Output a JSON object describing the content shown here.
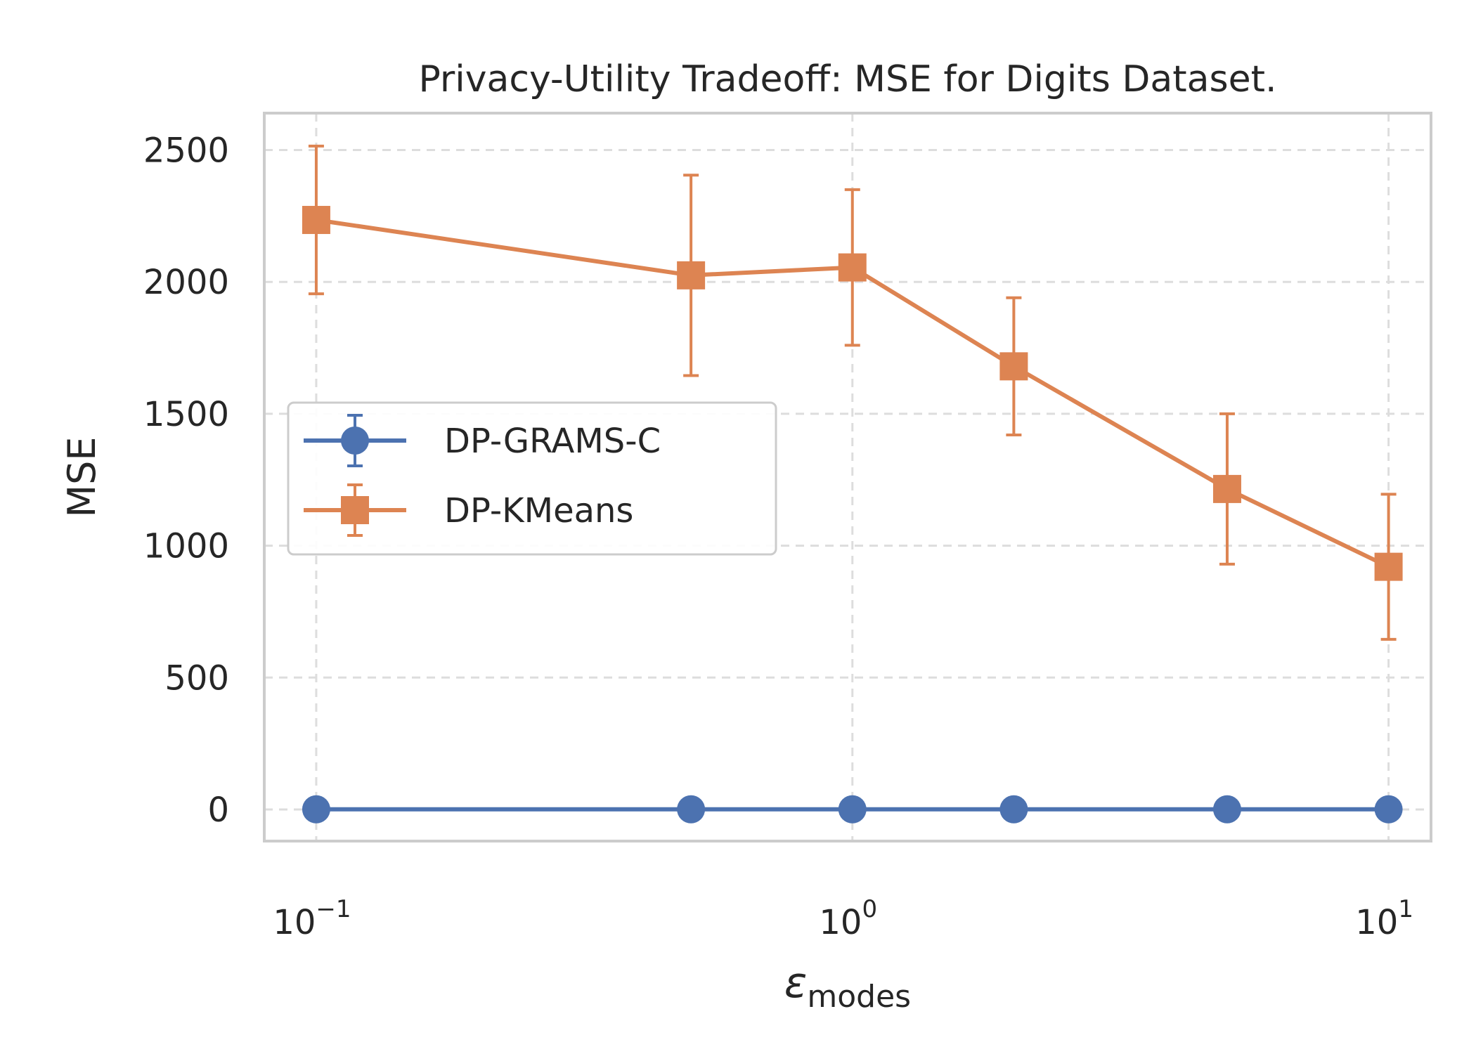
{
  "chart_data": {
    "type": "line",
    "title": "Privacy-Utility Tradeoff: MSE for Digits Dataset.",
    "xlabel": "ε_modes",
    "xlabel_symbol": "ε",
    "xlabel_subscript": "modes",
    "ylabel": "MSE",
    "x_scale": "log",
    "xlim": [
      0.08,
      12
    ],
    "ylim": [
      -120,
      2640
    ],
    "x_ticks": [
      {
        "value": 0.1,
        "base": "10",
        "exp": "−1"
      },
      {
        "value": 1,
        "base": "10",
        "exp": "0"
      },
      {
        "value": 10,
        "base": "10",
        "exp": "1"
      }
    ],
    "y_ticks": [
      0,
      500,
      1000,
      1500,
      2000,
      2500
    ],
    "y_tick_labels": [
      "0",
      "500",
      "1000",
      "1500",
      "2000",
      "2500"
    ],
    "grid": true,
    "legend_position": "center-left",
    "x": [
      0.1,
      0.5,
      1,
      2,
      5,
      10
    ],
    "series": [
      {
        "name": "DP-GRAMS-C",
        "marker": "circle",
        "color": "#4c72b0",
        "values": [
          0.5,
          0.5,
          0.5,
          0.5,
          0.5,
          0.5
        ],
        "errors": [
          0,
          0,
          0,
          0,
          0,
          0
        ]
      },
      {
        "name": "DP-KMeans",
        "marker": "square",
        "color": "#dd8452",
        "values": [
          2235,
          2025,
          2055,
          1680,
          1215,
          920
        ],
        "errors": [
          280,
          380,
          295,
          260,
          285,
          275
        ]
      }
    ]
  }
}
